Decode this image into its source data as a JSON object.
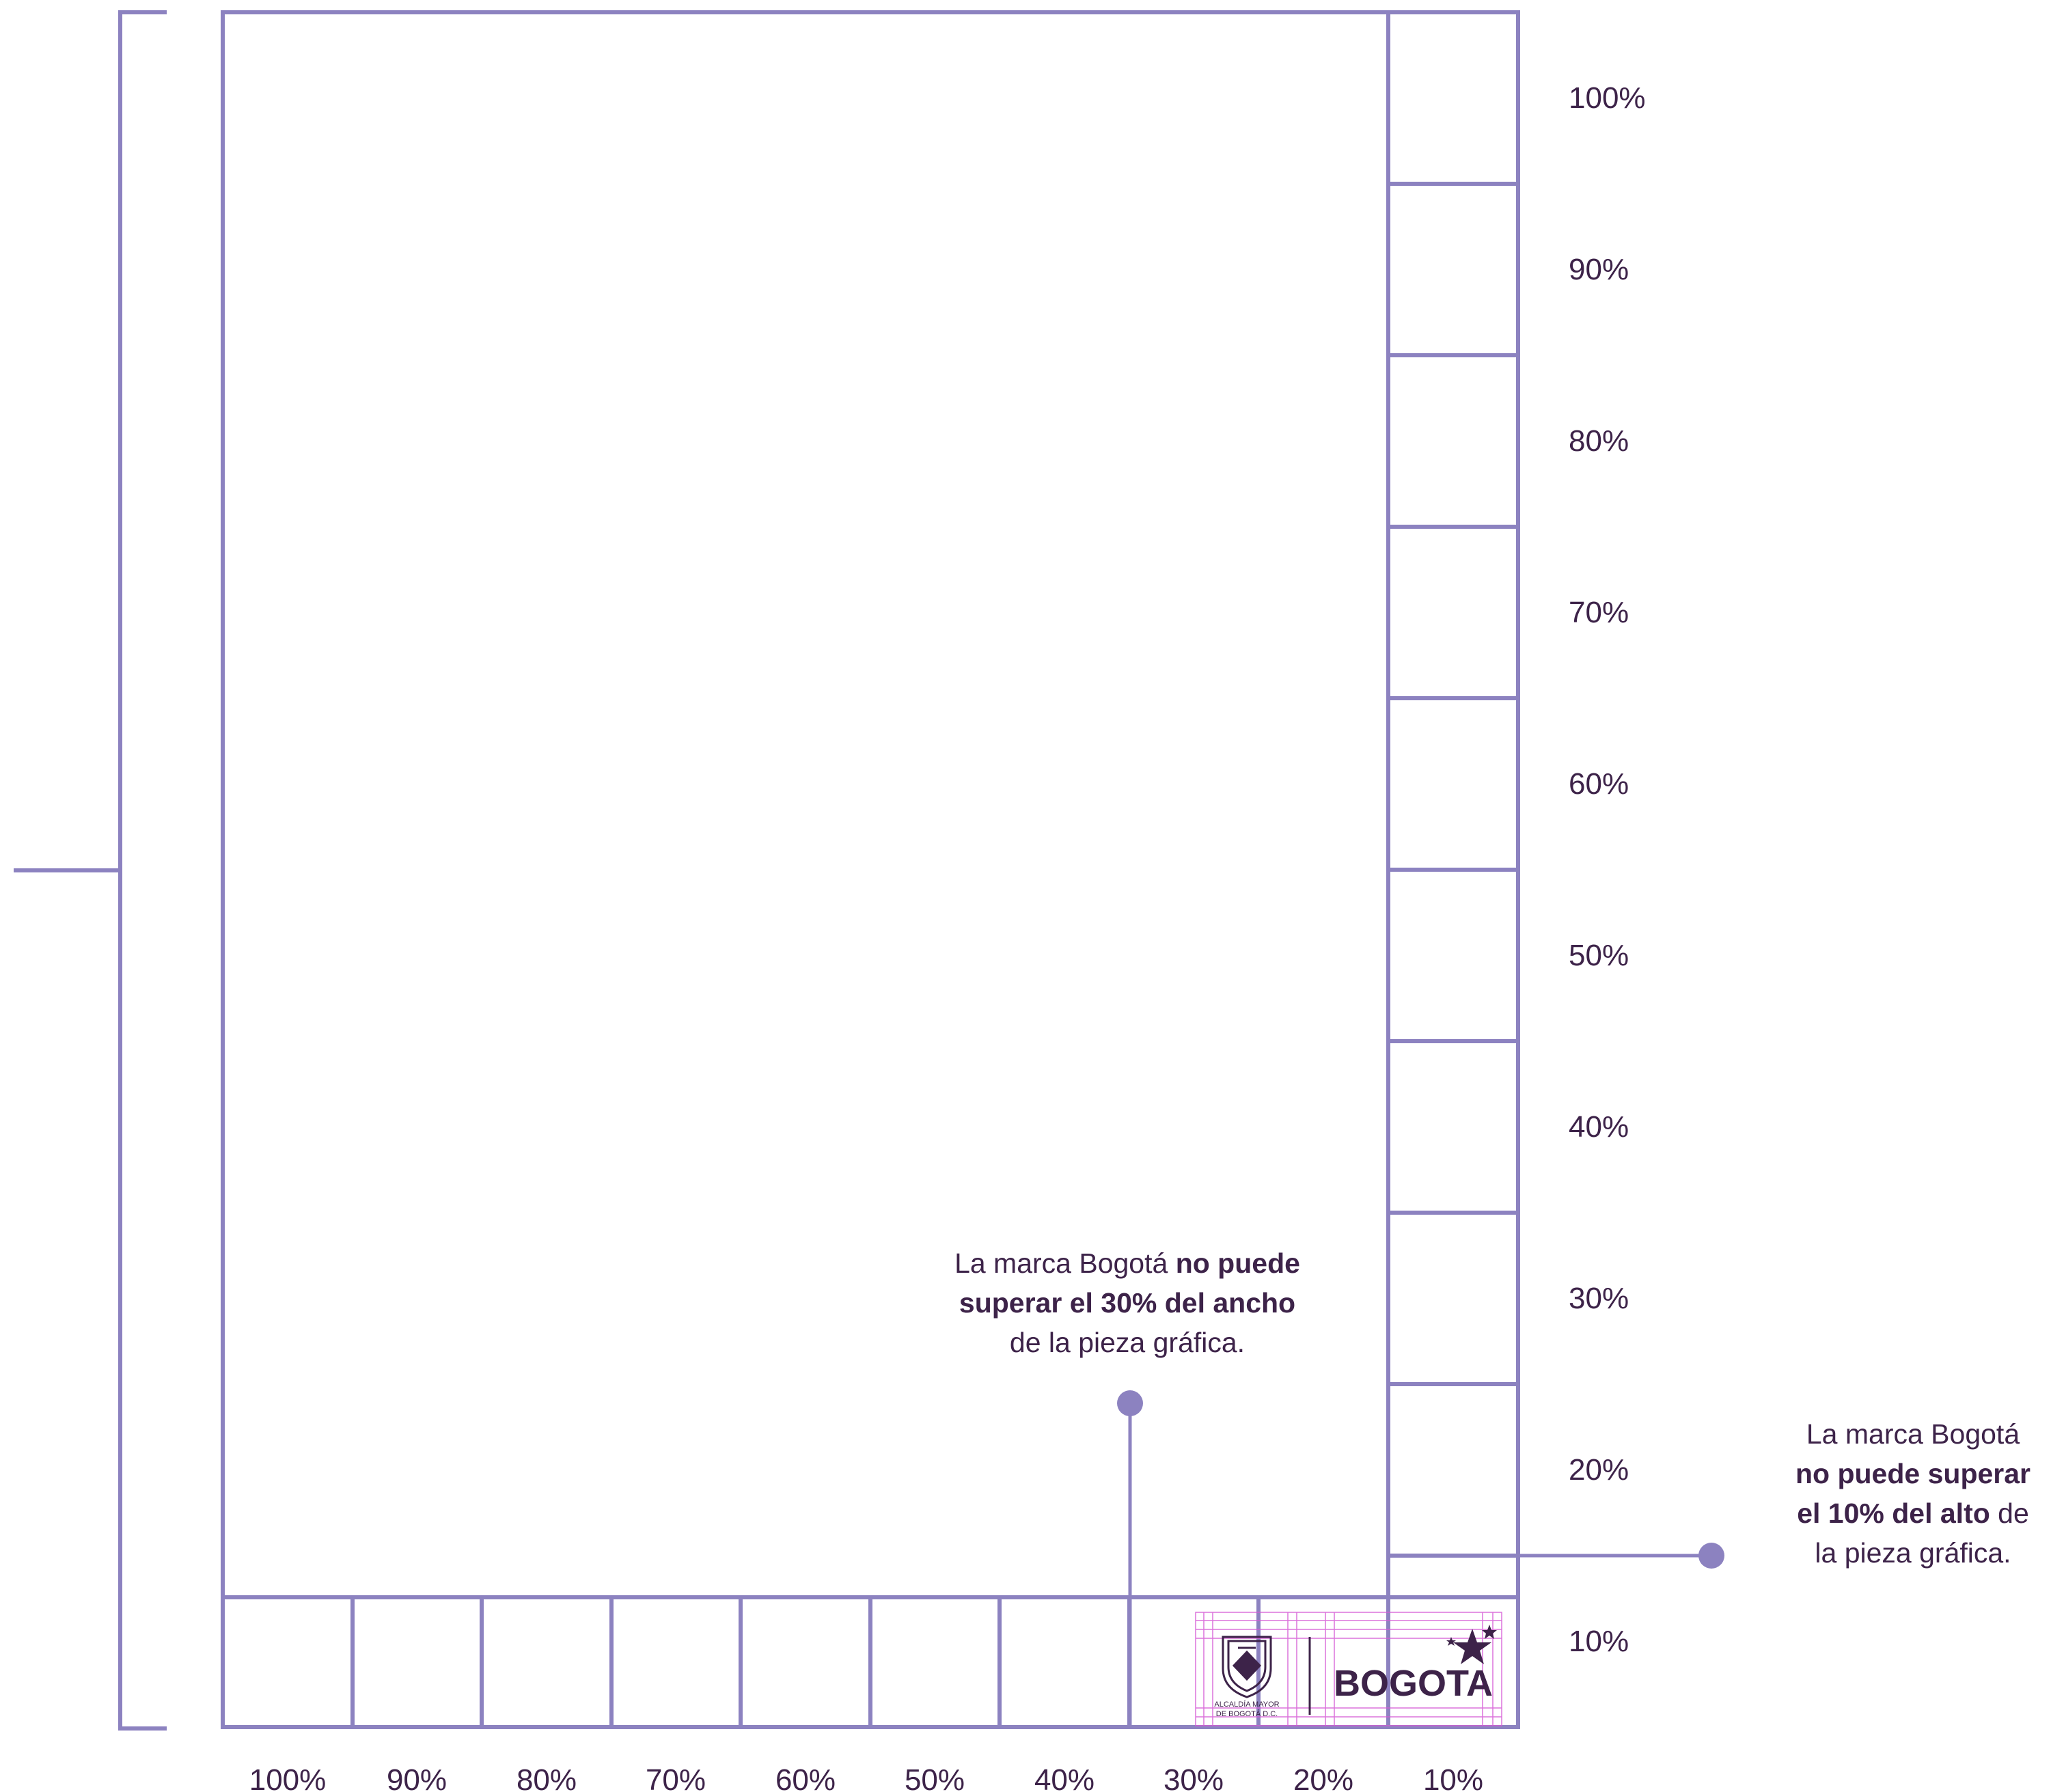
{
  "colors": {
    "line": "#8c82c0",
    "text": "#3d2349",
    "guide": "#d65bd6",
    "logo": "#3d2349"
  },
  "bottom_scale": [
    "100%",
    "90%",
    "80%",
    "70%",
    "60%",
    "50%",
    "40%",
    "30%",
    "20%",
    "10%"
  ],
  "right_scale": [
    "100%",
    "90%",
    "80%",
    "70%",
    "60%",
    "50%",
    "40%",
    "30%",
    "20%",
    "10%"
  ],
  "note_width": {
    "lead": "La marca Bogotá ",
    "bold": "no puede superar el 30% del ancho",
    "tail": "de la pieza gráfica."
  },
  "note_height": {
    "lead": "La marca Bogotá",
    "bold_1": "no puede superar",
    "bold_2": "el 10% del alto",
    "mid": " de",
    "tail": "la pieza gráfica."
  },
  "logo": {
    "seal_caption_1": "ALCALDÍA MAYOR",
    "seal_caption_2": "DE BOGOTÁ D.C.",
    "wordmark": "BOGOTA",
    "icon": "star-icon"
  }
}
